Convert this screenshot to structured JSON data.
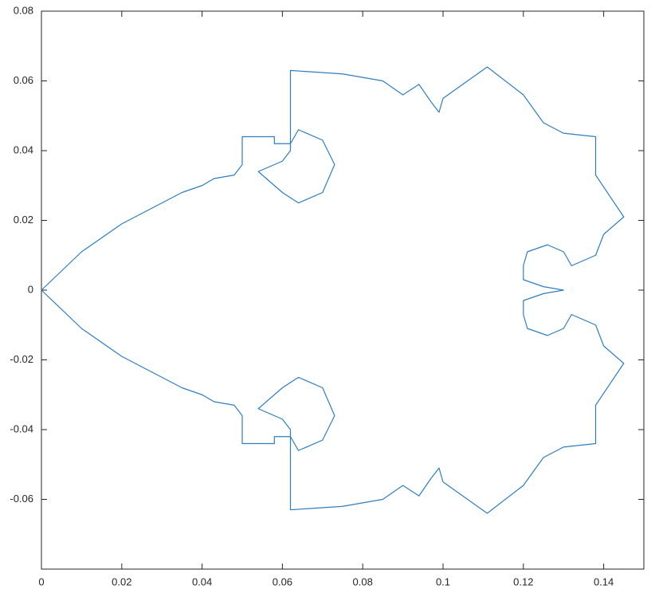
{
  "chart_data": {
    "type": "line",
    "x": [
      0,
      0.01,
      0.02,
      0.03,
      0.035,
      0.04,
      0.043,
      0.048,
      0.05,
      0.05,
      0.058,
      0.058,
      0.062,
      0.064,
      0.07,
      0.073,
      0.07,
      0.064,
      0.06,
      0.054,
      0.06,
      0.062,
      0.062,
      0.075,
      0.085,
      0.09,
      0.094,
      0.097,
      0.099,
      0.1,
      0.111,
      0.12,
      0.125,
      0.13,
      0.138,
      0.138,
      0.145,
      0.14,
      0.138,
      0.132,
      0.13,
      0.126,
      0.121,
      0.12,
      0.12,
      0.125,
      0.13,
      0.125,
      0.12,
      0.12,
      0.121,
      0.126,
      0.13,
      0.132,
      0.138,
      0.14,
      0.145,
      0.138,
      0.138,
      0.13,
      0.125,
      0.12,
      0.111,
      0.1,
      0.099,
      0.097,
      0.094,
      0.09,
      0.085,
      0.075,
      0.062,
      0.062,
      0.06,
      0.054,
      0.06,
      0.064,
      0.07,
      0.073,
      0.07,
      0.064,
      0.062,
      0.058,
      0.058,
      0.05,
      0.05,
      0.048,
      0.043,
      0.04,
      0.035,
      0.03,
      0.02,
      0.01,
      0
    ],
    "series": [
      {
        "color": "#2f7dbf",
        "values": [
          0,
          0.011,
          0.019,
          0.025,
          0.028,
          0.03,
          0.032,
          0.033,
          0.036,
          0.044,
          0.044,
          0.042,
          0.042,
          0.046,
          0.043,
          0.036,
          0.028,
          0.025,
          0.028,
          0.034,
          0.037,
          0.04,
          0.063,
          0.062,
          0.06,
          0.056,
          0.059,
          0.054,
          0.051,
          0.055,
          0.064,
          0.056,
          0.048,
          0.045,
          0.044,
          0.033,
          0.021,
          0.016,
          0.01,
          0.007,
          0.011,
          0.013,
          0.011,
          0.007,
          0.003,
          0.001,
          0,
          -0.001,
          -0.003,
          -0.007,
          -0.011,
          -0.013,
          -0.011,
          -0.007,
          -0.01,
          -0.016,
          -0.021,
          -0.033,
          -0.044,
          -0.045,
          -0.048,
          -0.056,
          -0.064,
          -0.055,
          -0.051,
          -0.054,
          -0.059,
          -0.056,
          -0.06,
          -0.062,
          -0.063,
          -0.04,
          -0.037,
          -0.034,
          -0.028,
          -0.025,
          -0.028,
          -0.036,
          -0.043,
          -0.046,
          -0.042,
          -0.042,
          -0.044,
          -0.044,
          -0.036,
          -0.033,
          -0.032,
          -0.03,
          -0.028,
          -0.025,
          -0.019,
          -0.011,
          0
        ]
      }
    ],
    "xlim": [
      0,
      0.15
    ],
    "ylim": [
      -0.08,
      0.08
    ],
    "xticks": [
      0,
      0.02,
      0.04,
      0.06,
      0.08,
      0.1,
      0.12,
      0.14
    ],
    "yticks": [
      -0.06,
      -0.04,
      -0.02,
      0,
      0.02,
      0.04,
      0.06,
      0.08
    ]
  }
}
